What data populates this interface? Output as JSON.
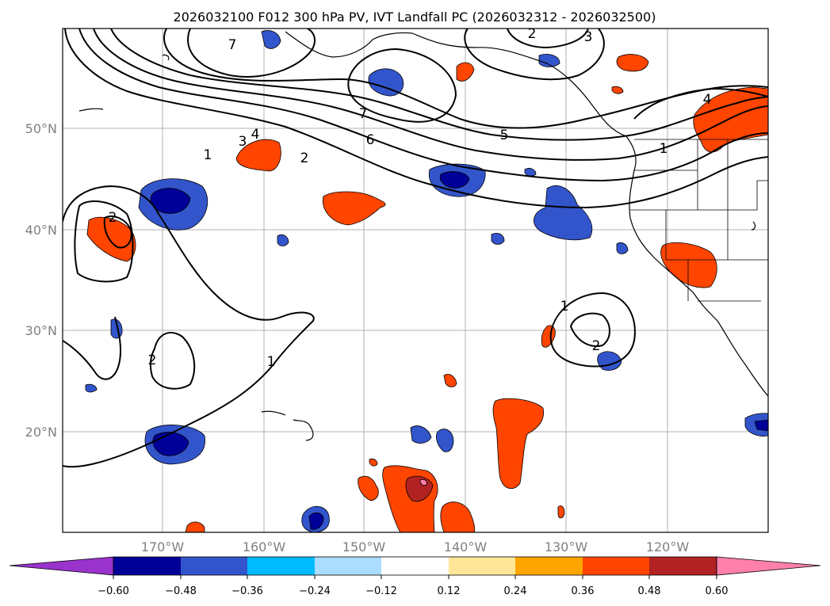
{
  "title": "2026032100 F012 300 hPa PV, IVT Landfall PC (2026032312 - 2026032500)",
  "map": {
    "lon_range": [
      -180,
      -110
    ],
    "lat_range": [
      10,
      60
    ],
    "lon_ticks": [
      "170°W",
      "160°W",
      "150°W",
      "140°W",
      "130°W",
      "120°W"
    ],
    "lat_ticks": [
      "50°N",
      "40°N",
      "30°N",
      "20°N"
    ],
    "grid": true
  },
  "contour_labels": [
    "7",
    "4",
    "3",
    "1",
    "2",
    "7",
    "6",
    "5",
    "2",
    "3",
    "4",
    "1",
    "2",
    "2",
    "1",
    "1",
    "2"
  ],
  "colorbar": {
    "ticks": [
      "−0.60",
      "−0.48",
      "−0.36",
      "−0.24",
      "−0.12",
      "0.12",
      "0.24",
      "0.36",
      "0.48",
      "0.60"
    ],
    "colors": {
      "under": "#9933cc",
      "bins": [
        "#000099",
        "#3355cc",
        "#00bbff",
        "#aaddff",
        "#ffffff",
        "#ffe699",
        "#ffa500",
        "#ff4500",
        "#b22222",
        "#ff80aa"
      ]
    }
  }
}
